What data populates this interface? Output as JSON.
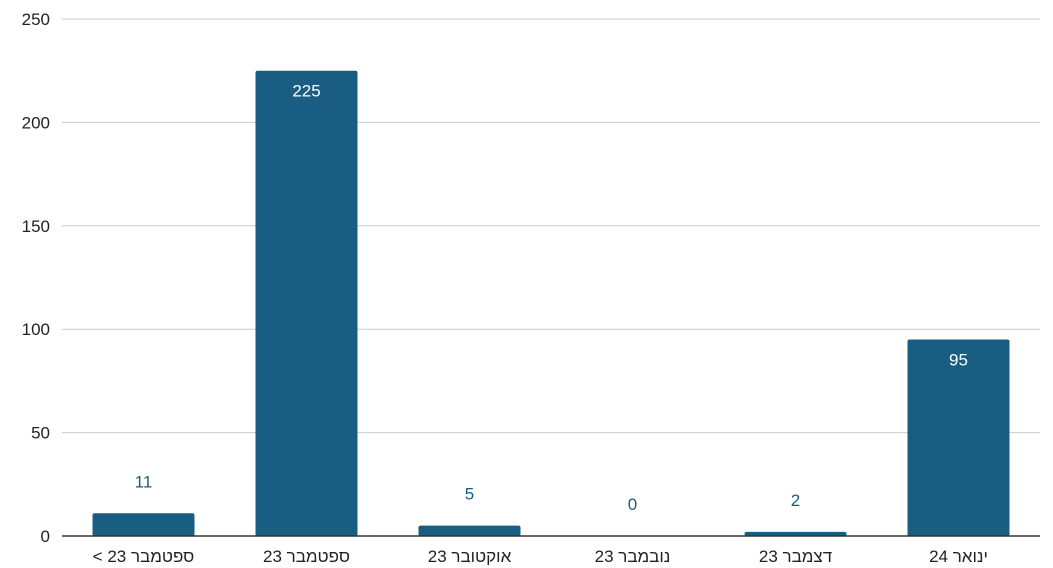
{
  "chart_data": {
    "type": "bar",
    "categories": [
      "ספטמבר 23 >",
      "ספטמבר 23",
      "אוקטובר 23",
      "נובמבר 23",
      "דצמבר 23",
      "ינואר 24"
    ],
    "values": [
      11,
      225,
      5,
      0,
      2,
      95
    ],
    "data_labels": [
      "11",
      "225",
      "5",
      "0",
      "2",
      "95"
    ],
    "title": "",
    "xlabel": "",
    "ylabel": "",
    "ylim": [
      0,
      250
    ],
    "yticks": [
      0,
      50,
      100,
      150,
      200,
      250
    ],
    "ytick_labels": [
      "0",
      "50",
      "100",
      "150",
      "200",
      "250"
    ],
    "grid": true,
    "bar_color": "#1a5d82"
  }
}
